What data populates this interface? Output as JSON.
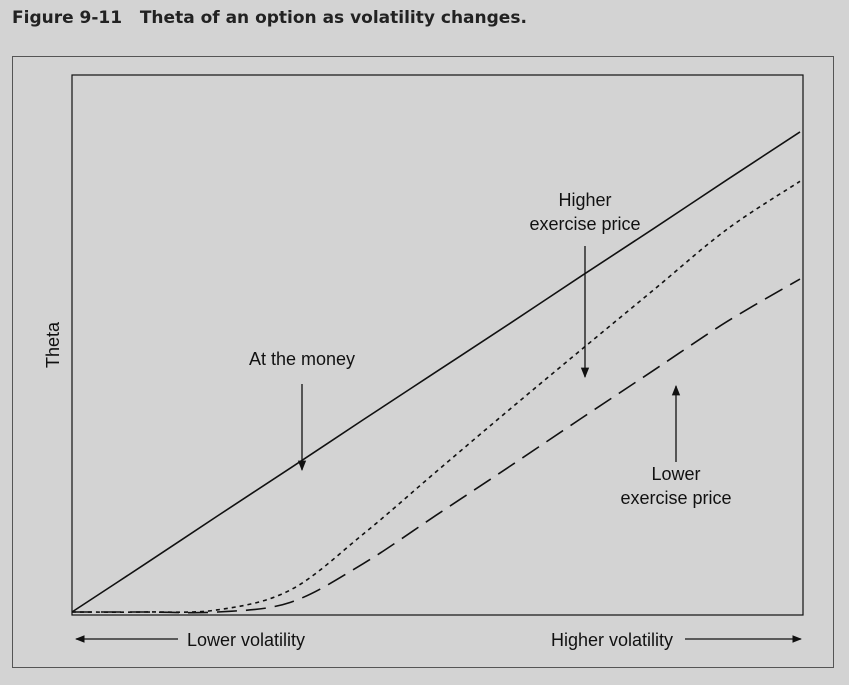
{
  "caption": "Figure 9-11   Theta of an option as volatility changes.",
  "chart_data": {
    "type": "line",
    "title": "",
    "ylabel": "Theta",
    "xlabel_left": "Lower volatility",
    "xlabel_right": "Higher volatility",
    "x": [
      0,
      0.1,
      0.2,
      0.3,
      0.4,
      0.5,
      0.6,
      0.7,
      0.8,
      0.9,
      1.0
    ],
    "xlim": [
      0,
      1
    ],
    "ylim": [
      0,
      1
    ],
    "grid": false,
    "series": [
      {
        "name": "At the money",
        "style": "solid",
        "values": [
          0.0,
          0.089,
          0.179,
          0.268,
          0.358,
          0.447,
          0.536,
          0.626,
          0.715,
          0.805,
          0.894
        ]
      },
      {
        "name": "Higher exercise price",
        "style": "dotted",
        "values": [
          0.0,
          0.0,
          0.004,
          0.041,
          0.145,
          0.261,
          0.376,
          0.489,
          0.601,
          0.713,
          0.802
        ]
      },
      {
        "name": "Lower exercise price",
        "style": "dashed",
        "values": [
          0.0,
          0.0,
          0.0,
          0.018,
          0.09,
          0.18,
          0.27,
          0.361,
          0.451,
          0.541,
          0.62
        ]
      }
    ],
    "annotations": [
      {
        "target": "At the money",
        "lines": [
          "At the money"
        ]
      },
      {
        "target": "Higher exercise price",
        "lines": [
          "Higher",
          "exercise price"
        ]
      },
      {
        "target": "Lower exercise price",
        "lines": [
          "Lower",
          "exercise price"
        ]
      }
    ]
  }
}
